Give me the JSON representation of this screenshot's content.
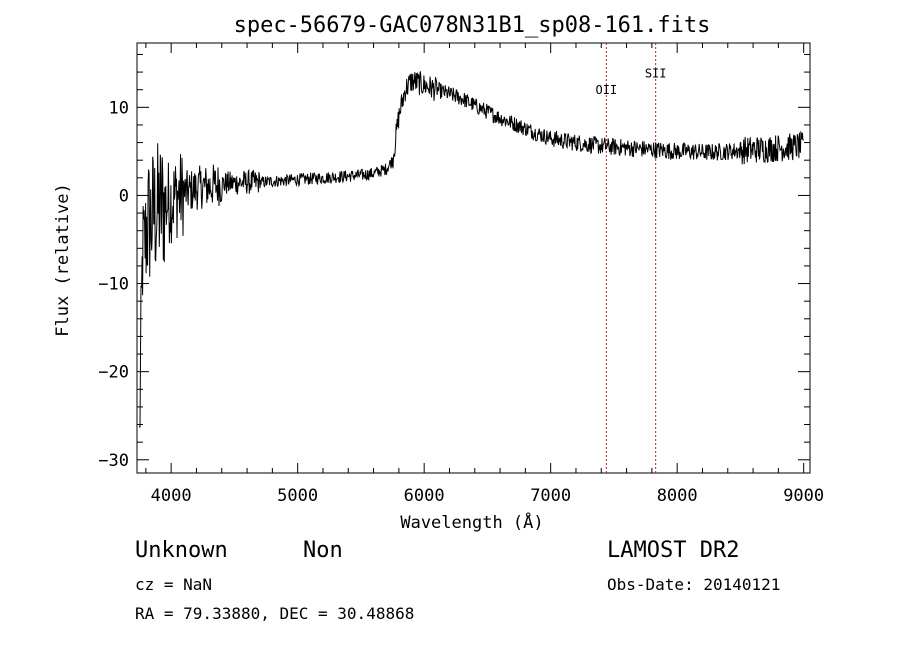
{
  "chart_data": {
    "type": "line",
    "title": "spec-56679-GAC078N31B1_sp08-161.fits",
    "xlabel": "Wavelength (Å)",
    "ylabel": "Flux (relative)",
    "xlim": [
      3730,
      9050
    ],
    "ylim": [
      -31.5,
      17.3
    ],
    "xticks": [
      4000,
      5000,
      6000,
      7000,
      8000,
      9000
    ],
    "yticks": [
      -30,
      -20,
      -10,
      0,
      10
    ],
    "line_color": "#000000",
    "marker_color": "#b22222",
    "series": [
      {
        "values_x": [
          3750,
          3760,
          3770,
          3780,
          3790,
          3800,
          3820,
          3840,
          3860,
          3880,
          3900,
          3950,
          4000,
          4050,
          4100,
          4150,
          4200,
          4250,
          4300,
          4350,
          4400,
          4500,
          4600,
          4700,
          4800,
          4900,
          5000,
          5100,
          5200,
          5300,
          5400,
          5500,
          5600,
          5700,
          5750,
          5800,
          5850,
          5900,
          5950,
          6000,
          6100,
          6200,
          6300,
          6400,
          6500,
          6600,
          6700,
          6800,
          6900,
          7000,
          7100,
          7200,
          7300,
          7400,
          7500,
          7600,
          7700,
          7800,
          7900,
          8000,
          8100,
          8200,
          8300,
          8400,
          8500,
          8600,
          8700,
          8800,
          8900,
          9000
        ],
        "values_y": [
          -28,
          -18,
          -9,
          -5,
          -6,
          -4,
          -3,
          -3,
          -2,
          -2,
          -1.5,
          -1,
          -0.5,
          0,
          0.3,
          0.5,
          0.8,
          1,
          1,
          1.2,
          1.3,
          1.4,
          1.5,
          1.5,
          1.6,
          1.7,
          1.8,
          1.9,
          2,
          2.1,
          2.2,
          2.3,
          2.5,
          3,
          4,
          9,
          12,
          13,
          12.8,
          12.5,
          12,
          11.5,
          11,
          10.2,
          9.5,
          8.8,
          8.2,
          7.6,
          7,
          6.5,
          6.2,
          6,
          5.8,
          5.6,
          5.5,
          5.4,
          5.3,
          5.2,
          5.1,
          5,
          5,
          4.9,
          4.9,
          5,
          5.1,
          5.2,
          5.3,
          5.4,
          5.5,
          5.6
        ]
      }
    ],
    "lines": [
      {
        "label": "OII",
        "x": 7440,
        "label_y": 11.5
      },
      {
        "label": "SII",
        "x": 7830,
        "label_y": 13.4
      }
    ]
  },
  "info": {
    "class_text": "Unknown",
    "subclass_text": "Non",
    "survey": "LAMOST DR2",
    "cz": "cz = NaN",
    "obs_date": "Obs-Date: 20140121",
    "radec": "RA =  79.33880, DEC =  30.48868"
  }
}
